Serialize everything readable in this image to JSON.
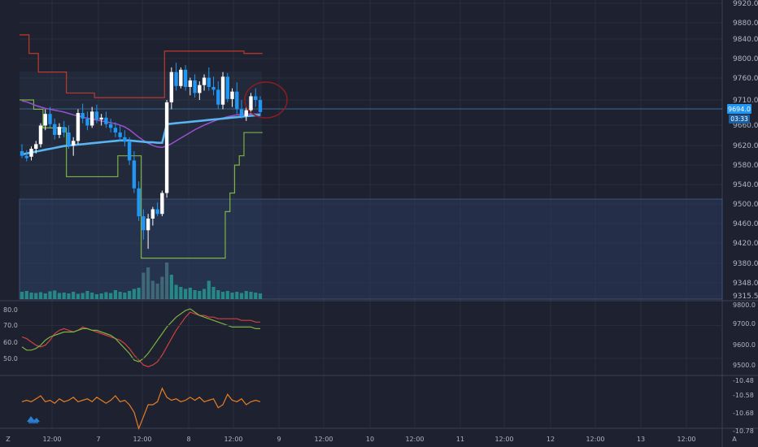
{
  "chart": {
    "price_tag": "9694.0",
    "countdown_tag": "03:33",
    "corner_left": "Z",
    "corner_right": "A"
  },
  "colors": {
    "background": "#1e2130",
    "grid": "#2a2e3d",
    "axis_text": "#b2b5be",
    "up_candle": "#ffffff",
    "down_candle": "#2196f3",
    "ma_blue": "#5ab4f0",
    "ma_purple": "#9c4fd0",
    "channel_upper": "#c0392b",
    "channel_lower": "#7cb342",
    "rsi_red": "#d0413f",
    "rsi_green": "#7cb342",
    "oscillator": "#e67e22",
    "volume": "#26a69a",
    "price_tag_bg": "#2196f3",
    "zone_fill": "#2a3b5c"
  },
  "chart_data": [
    {
      "type": "candlestick",
      "x_ticks": [
        "12:00",
        "7",
        "12:00",
        "8",
        "12:00",
        "9",
        "12:00",
        "10",
        "12:00",
        "11",
        "12:00",
        "12",
        "12:00",
        "13",
        "12:00"
      ],
      "y_ticks": [
        "9920.0",
        "9880.0",
        "9840.0",
        "9800.0",
        "9760.0",
        "9710.0",
        "9694.0",
        "9660.0",
        "9620.0",
        "9580.0",
        "9540.0",
        "9500.0",
        "9460.0",
        "9420.0",
        "9380.0",
        "9348.0",
        "9315.5"
      ],
      "ylim": [
        9315.5,
        9920
      ],
      "last_price": 9694.0,
      "candles": [
        [
          9610,
          9625,
          9595,
          9600
        ],
        [
          9600,
          9612,
          9588,
          9595
        ],
        [
          9598,
          9620,
          9590,
          9615
        ],
        [
          9615,
          9632,
          9605,
          9625
        ],
        [
          9625,
          9670,
          9618,
          9665
        ],
        [
          9665,
          9700,
          9655,
          9690
        ],
        [
          9690,
          9705,
          9660,
          9668
        ],
        [
          9668,
          9680,
          9635,
          9645
        ],
        [
          9645,
          9670,
          9638,
          9662
        ],
        [
          9662,
          9675,
          9640,
          9650
        ],
        [
          9650,
          9665,
          9615,
          9622
        ],
        [
          9622,
          9640,
          9600,
          9632
        ],
        [
          9632,
          9700,
          9625,
          9692
        ],
        [
          9692,
          9712,
          9670,
          9680
        ],
        [
          9680,
          9695,
          9655,
          9665
        ],
        [
          9665,
          9705,
          9660,
          9695
        ],
        [
          9695,
          9710,
          9670,
          9678
        ],
        [
          9678,
          9690,
          9665,
          9682
        ],
        [
          9682,
          9695,
          9660,
          9668
        ],
        [
          9668,
          9680,
          9650,
          9660
        ],
        [
          9660,
          9672,
          9640,
          9650
        ],
        [
          9650,
          9665,
          9630,
          9640
        ],
        [
          9640,
          9655,
          9620,
          9630
        ],
        [
          9630,
          9640,
          9580,
          9590
        ],
        [
          9590,
          9610,
          9520,
          9530
        ],
        [
          9530,
          9545,
          9460,
          9470
        ],
        [
          9470,
          9485,
          9420,
          9440
        ],
        [
          9440,
          9475,
          9400,
          9465
        ],
        [
          9465,
          9490,
          9450,
          9485
        ],
        [
          9485,
          9500,
          9470,
          9475
        ],
        [
          9475,
          9525,
          9470,
          9520
        ],
        [
          9520,
          9720,
          9510,
          9715
        ],
        [
          9715,
          9790,
          9700,
          9780
        ],
        [
          9780,
          9800,
          9740,
          9750
        ],
        [
          9750,
          9790,
          9745,
          9785
        ],
        [
          9785,
          9795,
          9740,
          9748
        ],
        [
          9748,
          9768,
          9730,
          9762
        ],
        [
          9762,
          9775,
          9725,
          9735
        ],
        [
          9735,
          9760,
          9720,
          9752
        ],
        [
          9752,
          9775,
          9740,
          9768
        ],
        [
          9768,
          9790,
          9740,
          9748
        ],
        [
          9748,
          9770,
          9730,
          9742
        ],
        [
          9742,
          9760,
          9700,
          9710
        ],
        [
          9710,
          9780,
          9700,
          9770
        ],
        [
          9770,
          9778,
          9715,
          9722
        ],
        [
          9722,
          9745,
          9705,
          9738
        ],
        [
          9738,
          9758,
          9690,
          9700
        ],
        [
          9700,
          9720,
          9680,
          9685
        ],
        [
          9685,
          9705,
          9675,
          9698
        ],
        [
          9698,
          9735,
          9690,
          9728
        ],
        [
          9728,
          9745,
          9705,
          9720
        ],
        [
          9720,
          9728,
          9685,
          9694
        ]
      ],
      "ma_blue": [
        9603,
        9605,
        9607,
        9609,
        9611,
        9613,
        9615,
        9617,
        9619,
        9621,
        9622,
        9623,
        9624,
        9625,
        9626,
        9627,
        9628,
        9629,
        9630,
        9631,
        9632,
        9633,
        9633,
        9633,
        9632,
        9631,
        9630,
        9629,
        9629,
        9628,
        9628,
        9668,
        9669,
        9670,
        9671,
        9672,
        9673,
        9674,
        9675,
        9676,
        9677,
        9678,
        9679,
        9680,
        9681,
        9682,
        9683,
        9684,
        9685,
        9686,
        9687,
        9688
      ],
      "ma_purple": [
        9718,
        9716,
        9712,
        9708,
        9705,
        9702,
        9700,
        9698,
        9696,
        9694,
        9691,
        9688,
        9686,
        9683,
        9681,
        9679,
        9677,
        9675,
        9673,
        9671,
        9669,
        9666,
        9662,
        9656,
        9648,
        9640,
        9633,
        9627,
        9622,
        9619,
        9618,
        9621,
        9626,
        9632,
        9638,
        9644,
        9650,
        9656,
        9661,
        9666,
        9670,
        9674,
        9678,
        9681,
        9684,
        9686,
        9688,
        9689,
        9690,
        9690,
        9690,
        9690
      ],
      "channel_upper": [
        9860,
        9860,
        9820,
        9820,
        9780,
        9780,
        9780,
        9780,
        9780,
        9780,
        9735,
        9735,
        9735,
        9735,
        9735,
        9735,
        9725,
        9725,
        9725,
        9725,
        9725,
        9725,
        9725,
        9725,
        9725,
        9725,
        9725,
        9725,
        9725,
        9725,
        9725,
        9825,
        9825,
        9825,
        9825,
        9825,
        9825,
        9825,
        9825,
        9825,
        9825,
        9825,
        9825,
        9825,
        9825,
        9825,
        9825,
        9825,
        9820,
        9820,
        9820,
        9820
      ],
      "channel_lower": [
        9720,
        9720,
        9720,
        9700,
        9700,
        9660,
        9660,
        9660,
        9660,
        9660,
        9555,
        9555,
        9555,
        9555,
        9555,
        9555,
        9555,
        9555,
        9555,
        9555,
        9555,
        9600,
        9600,
        9600,
        9600,
        9600,
        9380,
        9380,
        9380,
        9380,
        9380,
        9380,
        9380,
        9380,
        9380,
        9380,
        9380,
        9380,
        9380,
        9380,
        9380,
        9380,
        9380,
        9380,
        9480,
        9520,
        9580,
        9600,
        9650,
        9650,
        9650,
        9650
      ],
      "volume": [
        0.18,
        0.2,
        0.16,
        0.15,
        0.17,
        0.14,
        0.19,
        0.21,
        0.15,
        0.16,
        0.14,
        0.18,
        0.13,
        0.15,
        0.2,
        0.16,
        0.12,
        0.14,
        0.17,
        0.15,
        0.22,
        0.18,
        0.16,
        0.2,
        0.25,
        0.28,
        0.65,
        0.78,
        0.45,
        0.38,
        0.55,
        0.9,
        0.6,
        0.35,
        0.3,
        0.25,
        0.28,
        0.22,
        0.2,
        0.25,
        0.45,
        0.3,
        0.22,
        0.18,
        0.2,
        0.16,
        0.18,
        0.15,
        0.2,
        0.18,
        0.16,
        0.14
      ]
    },
    {
      "type": "line",
      "y_ticks_left": [
        "80.0",
        "70.0",
        "60.0",
        "50.0"
      ],
      "y_ticks_right": [
        "9800.0",
        "9700.0",
        "9600.0",
        "9500.0"
      ],
      "ylim": [
        44,
        82
      ],
      "series": [
        {
          "values": [
            63,
            62,
            60,
            58,
            57,
            58,
            61,
            65,
            67,
            68,
            67,
            66,
            67,
            69,
            68,
            67,
            66,
            65,
            64,
            63,
            62,
            61,
            59,
            56,
            52,
            49,
            46,
            45,
            46,
            48,
            52,
            57,
            62,
            67,
            71,
            75,
            78,
            77,
            76,
            76,
            75,
            75,
            74,
            74,
            74,
            74,
            74,
            73,
            73,
            73,
            72,
            72
          ]
        },
        {
          "values": [
            57,
            55,
            55,
            56,
            58,
            61,
            63,
            64,
            65,
            66,
            66,
            66,
            67,
            68,
            68,
            67,
            67,
            66,
            65,
            64,
            62,
            59,
            56,
            53,
            49,
            48,
            50,
            53,
            57,
            61,
            65,
            69,
            72,
            75,
            77,
            79,
            80,
            78,
            76,
            75,
            74,
            73,
            72,
            71,
            70,
            69,
            69,
            69,
            69,
            69,
            68,
            68
          ]
        }
      ]
    },
    {
      "type": "line",
      "y_ticks": [
        "-10.48",
        "-10.58",
        "-10.68",
        "-10.78"
      ],
      "ylim": [
        -10.79,
        -10.47
      ],
      "series": [
        {
          "values": [
            -10.58,
            -10.57,
            -10.58,
            -10.56,
            -10.54,
            -10.58,
            -10.57,
            -10.59,
            -10.56,
            -10.58,
            -10.57,
            -10.55,
            -10.58,
            -10.57,
            -10.56,
            -10.58,
            -10.55,
            -10.57,
            -10.59,
            -10.57,
            -10.54,
            -10.58,
            -10.57,
            -10.6,
            -10.65,
            -10.76,
            -10.68,
            -10.6,
            -10.6,
            -10.58,
            -10.49,
            -10.55,
            -10.57,
            -10.56,
            -10.58,
            -10.57,
            -10.55,
            -10.57,
            -10.55,
            -10.58,
            -10.57,
            -10.56,
            -10.62,
            -10.6,
            -10.53,
            -10.57,
            -10.58,
            -10.56,
            -10.6,
            -10.58,
            -10.57,
            -10.58
          ]
        }
      ]
    }
  ]
}
